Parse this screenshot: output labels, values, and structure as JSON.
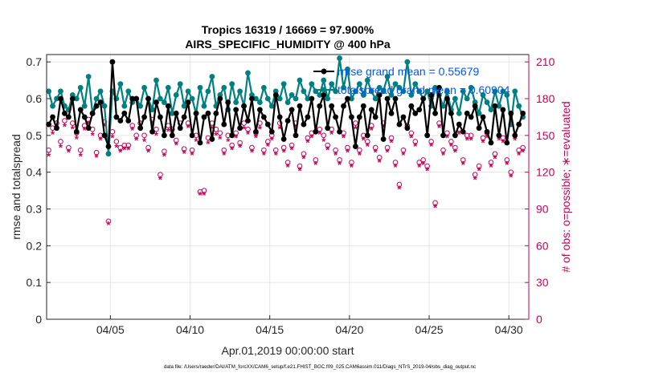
{
  "chart_data": {
    "type": "line",
    "title_line1": "Tropics 16319 / 16669 = 97.900%",
    "title_line2": "AIRS_SPECIFIC_HUMIDITY @ 400 hPa",
    "xlabel": "Apr.01,2019 00:00:00 start",
    "ylabel_left": "rmse and totalspread",
    "ylabel_right": "# of obs: o=possible; ∗=evaluated",
    "footer": "data file: /Users/raeder/DAI/ATM_forcXX/CAM6_setup/f.e21.FHIST_BGC.f09_025.CAM6assim.011/Diags_NTrS_2019-04/obs_diag_output.nc",
    "xlim": [
      1.0,
      31.25
    ],
    "ylim_left": [
      0,
      0.72
    ],
    "ylim_right": [
      0,
      216
    ],
    "x_ticks": [
      5,
      10,
      15,
      20,
      25,
      30
    ],
    "x_tick_labels": [
      "04/05",
      "04/10",
      "04/15",
      "04/20",
      "04/25",
      "04/30"
    ],
    "y_ticks_left": [
      0,
      0.1,
      0.2,
      0.3,
      0.4,
      0.5,
      0.6,
      0.7
    ],
    "y_ticks_left_labels": [
      "0",
      "0.1",
      "0.2",
      "0.3",
      "0.4",
      "0.5",
      "0.6",
      "0.7"
    ],
    "y_ticks_right": [
      0,
      30,
      60,
      90,
      120,
      150,
      180,
      210
    ],
    "y_ticks_right_labels": [
      "0",
      "30",
      "60",
      "90",
      "120",
      "150",
      "180",
      "210"
    ],
    "grid": true,
    "colors": {
      "rmse": "#000000",
      "spread": "#008080",
      "obs": "#cc0055",
      "legend_text": "#0055ff"
    },
    "legend": [
      {
        "label": "rmse grand mean = 0.55679",
        "series": "rmse"
      },
      {
        "label": "totalspread grand mean = 0.60904",
        "series": "spread"
      }
    ],
    "series": [
      {
        "name": "rmse",
        "x": [
          1.13,
          1.38,
          1.63,
          1.88,
          2.13,
          2.38,
          2.63,
          2.88,
          3.13,
          3.38,
          3.63,
          3.88,
          4.13,
          4.38,
          4.63,
          4.88,
          5.13,
          5.38,
          5.63,
          5.88,
          6.13,
          6.38,
          6.63,
          6.88,
          7.13,
          7.38,
          7.63,
          7.88,
          8.13,
          8.38,
          8.63,
          8.88,
          9.13,
          9.38,
          9.63,
          9.88,
          10.13,
          10.38,
          10.63,
          10.88,
          11.13,
          11.38,
          11.63,
          11.88,
          12.13,
          12.38,
          12.63,
          12.88,
          13.13,
          13.38,
          13.63,
          13.88,
          14.13,
          14.38,
          14.63,
          14.88,
          15.13,
          15.38,
          15.63,
          15.88,
          16.13,
          16.38,
          16.63,
          16.88,
          17.13,
          17.38,
          17.63,
          17.88,
          18.13,
          18.38,
          18.63,
          18.88,
          19.13,
          19.38,
          19.63,
          19.88,
          20.13,
          20.38,
          20.63,
          20.88,
          21.13,
          21.38,
          21.63,
          21.88,
          22.13,
          22.38,
          22.63,
          22.88,
          23.13,
          23.38,
          23.63,
          23.88,
          24.13,
          24.38,
          24.63,
          24.88,
          25.13,
          25.38,
          25.63,
          25.88,
          26.13,
          26.38,
          26.63,
          26.88,
          27.13,
          27.38,
          27.63,
          27.88,
          28.13,
          28.38,
          28.63,
          28.88,
          29.13,
          29.38,
          29.63,
          29.88,
          30.13,
          30.38,
          30.63,
          30.88
        ],
        "values": [
          0.53,
          0.55,
          0.52,
          0.6,
          0.56,
          0.55,
          0.6,
          0.51,
          0.57,
          0.55,
          0.52,
          0.56,
          0.58,
          0.59,
          0.5,
          0.47,
          0.7,
          0.55,
          0.54,
          0.56,
          0.54,
          0.6,
          0.6,
          0.52,
          0.55,
          0.6,
          0.51,
          0.59,
          0.55,
          0.5,
          0.58,
          0.5,
          0.56,
          0.52,
          0.55,
          0.59,
          0.5,
          0.56,
          0.48,
          0.55,
          0.56,
          0.49,
          0.56,
          0.6,
          0.53,
          0.59,
          0.5,
          0.57,
          0.52,
          0.58,
          0.54,
          0.6,
          0.51,
          0.57,
          0.55,
          0.53,
          0.51,
          0.61,
          0.55,
          0.49,
          0.54,
          0.57,
          0.5,
          0.58,
          0.53,
          0.55,
          0.6,
          0.51,
          0.58,
          0.61,
          0.52,
          0.58,
          0.55,
          0.51,
          0.58,
          0.6,
          0.55,
          0.47,
          0.55,
          0.58,
          0.5,
          0.57,
          0.55,
          0.61,
          0.49,
          0.6,
          0.56,
          0.6,
          0.53,
          0.55,
          0.52,
          0.58,
          0.56,
          0.57,
          0.6,
          0.5,
          0.61,
          0.56,
          0.63,
          0.5,
          0.6,
          0.56,
          0.5,
          0.53,
          0.51,
          0.56,
          0.55,
          0.58,
          0.52,
          0.55,
          0.51,
          0.48,
          0.58,
          0.5,
          0.57,
          0.48,
          0.56,
          0.5,
          0.53,
          0.56
        ]
      },
      {
        "name": "totalspread",
        "x": [
          1.13,
          1.38,
          1.63,
          1.88,
          2.13,
          2.38,
          2.63,
          2.88,
          3.13,
          3.38,
          3.63,
          3.88,
          4.13,
          4.38,
          4.63,
          4.88,
          5.13,
          5.38,
          5.63,
          5.88,
          6.13,
          6.38,
          6.63,
          6.88,
          7.13,
          7.38,
          7.63,
          7.88,
          8.13,
          8.38,
          8.63,
          8.88,
          9.13,
          9.38,
          9.63,
          9.88,
          10.13,
          10.38,
          10.63,
          10.88,
          11.13,
          11.38,
          11.63,
          11.88,
          12.13,
          12.38,
          12.63,
          12.88,
          13.13,
          13.38,
          13.63,
          13.88,
          14.13,
          14.38,
          14.63,
          14.88,
          15.13,
          15.38,
          15.63,
          15.88,
          16.13,
          16.38,
          16.63,
          16.88,
          17.13,
          17.38,
          17.63,
          17.88,
          18.13,
          18.38,
          18.63,
          18.88,
          19.13,
          19.38,
          19.63,
          19.88,
          20.13,
          20.38,
          20.63,
          20.88,
          21.13,
          21.38,
          21.63,
          21.88,
          22.13,
          22.38,
          22.63,
          22.88,
          23.13,
          23.38,
          23.63,
          23.88,
          24.13,
          24.38,
          24.63,
          24.88,
          25.13,
          25.38,
          25.63,
          25.88,
          26.13,
          26.38,
          26.63,
          26.88,
          27.13,
          27.38,
          27.63,
          27.88,
          28.13,
          28.38,
          28.63,
          28.88,
          29.13,
          29.38,
          29.63,
          29.88,
          30.13,
          30.38,
          30.63,
          30.88
        ],
        "values": [
          0.62,
          0.58,
          0.6,
          0.62,
          0.58,
          0.57,
          0.61,
          0.6,
          0.63,
          0.58,
          0.66,
          0.56,
          0.6,
          0.62,
          0.58,
          0.45,
          0.62,
          0.6,
          0.64,
          0.58,
          0.62,
          0.59,
          0.6,
          0.58,
          0.63,
          0.6,
          0.57,
          0.65,
          0.6,
          0.59,
          0.63,
          0.56,
          0.61,
          0.64,
          0.58,
          0.62,
          0.6,
          0.56,
          0.63,
          0.58,
          0.62,
          0.66,
          0.58,
          0.61,
          0.63,
          0.57,
          0.64,
          0.59,
          0.62,
          0.58,
          0.67,
          0.61,
          0.6,
          0.59,
          0.63,
          0.6,
          0.58,
          0.62,
          0.6,
          0.64,
          0.59,
          0.61,
          0.6,
          0.65,
          0.62,
          0.6,
          0.64,
          0.62,
          0.61,
          0.65,
          0.6,
          0.64,
          0.62,
          0.71,
          0.63,
          0.68,
          0.6,
          0.62,
          0.64,
          0.61,
          0.65,
          0.62,
          0.6,
          0.63,
          0.62,
          0.66,
          0.61,
          0.64,
          0.63,
          0.62,
          0.7,
          0.61,
          0.64,
          0.62,
          0.6,
          0.62,
          0.58,
          0.63,
          0.61,
          0.58,
          0.62,
          0.57,
          0.6,
          0.56,
          0.62,
          0.6,
          0.63,
          0.59,
          0.56,
          0.61,
          0.59,
          0.57,
          0.62,
          0.58,
          0.62,
          0.61,
          0.53,
          0.62,
          0.58,
          0.55
        ]
      },
      {
        "name": "obs_possible",
        "axis": "right",
        "x": [
          1.13,
          1.38,
          1.63,
          1.88,
          2.13,
          2.38,
          2.63,
          2.88,
          3.13,
          3.38,
          3.63,
          3.88,
          4.13,
          4.38,
          4.63,
          4.88,
          5.13,
          5.38,
          5.63,
          5.88,
          6.13,
          6.38,
          6.63,
          6.88,
          7.13,
          7.38,
          7.63,
          7.88,
          8.13,
          8.38,
          8.63,
          8.88,
          9.13,
          9.38,
          9.63,
          9.88,
          10.13,
          10.38,
          10.63,
          10.88,
          11.13,
          11.38,
          11.63,
          11.88,
          12.13,
          12.38,
          12.63,
          12.88,
          13.13,
          13.38,
          13.63,
          13.88,
          14.13,
          14.38,
          14.63,
          14.88,
          15.13,
          15.38,
          15.63,
          15.88,
          16.13,
          16.38,
          16.63,
          16.88,
          17.13,
          17.38,
          17.63,
          17.88,
          18.13,
          18.38,
          18.63,
          18.88,
          19.13,
          19.38,
          19.63,
          19.88,
          20.13,
          20.38,
          20.63,
          20.88,
          21.13,
          21.38,
          21.63,
          21.88,
          22.13,
          22.38,
          22.63,
          22.88,
          23.13,
          23.38,
          23.63,
          23.88,
          24.13,
          24.38,
          24.63,
          24.88,
          25.13,
          25.38,
          25.63,
          25.88,
          26.13,
          26.38,
          26.63,
          26.88,
          27.13,
          27.38,
          27.63,
          27.88,
          28.13,
          28.38,
          28.63,
          28.88,
          29.13,
          29.38,
          29.63,
          29.88,
          30.13,
          30.38,
          30.63,
          30.88
        ],
        "values": [
          138,
          156,
          160,
          145,
          162,
          140,
          160,
          152,
          138,
          158,
          163,
          155,
          136,
          150,
          161,
          80,
          153,
          145,
          140,
          142,
          142,
          158,
          150,
          160,
          150,
          140,
          163,
          155,
          118,
          137,
          158,
          155,
          146,
          160,
          139,
          160,
          138,
          150,
          104,
          105,
          148,
          160,
          155,
          152,
          138,
          150,
          142,
          152,
          144,
          160,
          155,
          140,
          152,
          160,
          138,
          145,
          150,
          138,
          160,
          140,
          128,
          142,
          160,
          125,
          135,
          148,
          152,
          130,
          155,
          150,
          142,
          155,
          138,
          130,
          152,
          140,
          128,
          160,
          138,
          150,
          145,
          158,
          140,
          132,
          160,
          140,
          148,
          128,
          110,
          138,
          158,
          152,
          145,
          128,
          130,
          125,
          145,
          95,
          160,
          138,
          152,
          145,
          140,
          155,
          130,
          150,
          150,
          118,
          125,
          148,
          152,
          128,
          135,
          150,
          148,
          130,
          120,
          150,
          138,
          140
        ]
      },
      {
        "name": "obs_evaluated",
        "axis": "right",
        "x": [
          1.13,
          1.38,
          1.63,
          1.88,
          2.13,
          2.38,
          2.63,
          2.88,
          3.13,
          3.38,
          3.63,
          3.88,
          4.13,
          4.38,
          4.63,
          4.88,
          5.13,
          5.38,
          5.63,
          5.88,
          6.13,
          6.38,
          6.63,
          6.88,
          7.13,
          7.38,
          7.63,
          7.88,
          8.13,
          8.38,
          8.63,
          8.88,
          9.13,
          9.38,
          9.63,
          9.88,
          10.13,
          10.38,
          10.63,
          10.88,
          11.13,
          11.38,
          11.63,
          11.88,
          12.13,
          12.38,
          12.63,
          12.88,
          13.13,
          13.38,
          13.63,
          13.88,
          14.13,
          14.38,
          14.63,
          14.88,
          15.13,
          15.38,
          15.63,
          15.88,
          16.13,
          16.38,
          16.63,
          16.88,
          17.13,
          17.38,
          17.63,
          17.88,
          18.13,
          18.38,
          18.63,
          18.88,
          19.13,
          19.38,
          19.63,
          19.88,
          20.13,
          20.38,
          20.63,
          20.88,
          21.13,
          21.38,
          21.63,
          21.88,
          22.13,
          22.38,
          22.63,
          22.88,
          23.13,
          23.38,
          23.63,
          23.88,
          24.13,
          24.38,
          24.63,
          24.88,
          25.13,
          25.38,
          25.63,
          25.88,
          26.13,
          26.38,
          26.63,
          26.88,
          27.13,
          27.38,
          27.63,
          27.88,
          28.13,
          28.38,
          28.63,
          28.88,
          29.13,
          29.38,
          29.63,
          29.88,
          30.13,
          30.38,
          30.63,
          30.88
        ],
        "values": [
          134,
          152,
          157,
          141,
          158,
          137,
          156,
          148,
          134,
          155,
          160,
          151,
          133,
          147,
          158,
          78,
          149,
          141,
          137,
          139,
          139,
          155,
          147,
          156,
          146,
          137,
          160,
          151,
          115,
          134,
          154,
          152,
          143,
          156,
          136,
          157,
          135,
          146,
          102,
          102,
          144,
          156,
          151,
          148,
          135,
          146,
          139,
          149,
          141,
          156,
          152,
          137,
          149,
          156,
          135,
          142,
          147,
          135,
          156,
          137,
          125,
          139,
          157,
          122,
          132,
          145,
          149,
          127,
          152,
          146,
          139,
          152,
          135,
          127,
          149,
          137,
          125,
          156,
          135,
          147,
          142,
          155,
          137,
          129,
          157,
          137,
          145,
          125,
          107,
          135,
          155,
          149,
          142,
          125,
          127,
          122,
          142,
          92,
          157,
          135,
          149,
          142,
          137,
          152,
          127,
          147,
          147,
          115,
          122,
          145,
          149,
          125,
          132,
          147,
          145,
          127,
          117,
          147,
          135,
          137
        ]
      }
    ]
  }
}
